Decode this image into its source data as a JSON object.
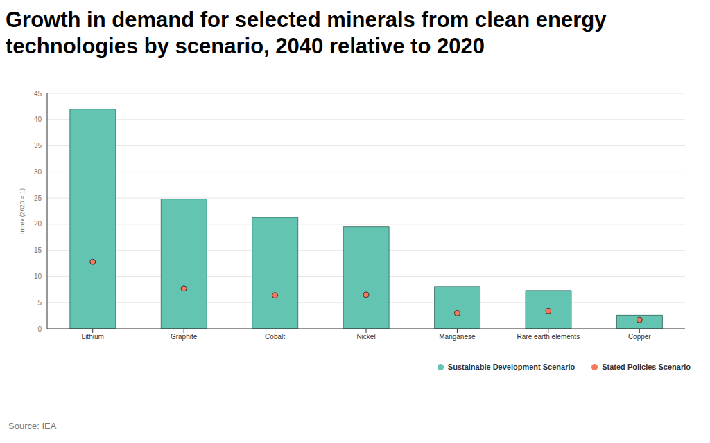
{
  "chart_data": {
    "type": "bar",
    "title": "Growth in demand for selected minerals from clean energy technologies by scenario, 2040 relative to 2020",
    "y_label": "Index (2020 = 1)",
    "source": "Source: IEA",
    "categories": [
      "Lithium",
      "Graphite",
      "Cobalt",
      "Nickel",
      "Manganese",
      "Rare earth elements",
      "Copper"
    ],
    "series": [
      {
        "name": "Sustainable Development Scenario",
        "type": "bar",
        "color": "#62c4b1",
        "values": [
          42,
          24.8,
          21.3,
          19.5,
          8.1,
          7.3,
          2.6
        ]
      },
      {
        "name": "Stated Policies Scenario",
        "type": "scatter",
        "marker": "circle",
        "color": "#f47a5a",
        "values": [
          12.8,
          7.7,
          6.4,
          6.5,
          3.0,
          3.4,
          1.7
        ]
      }
    ],
    "ylim": [
      0,
      45
    ],
    "yticks": [
      0,
      5,
      10,
      15,
      20,
      25,
      30,
      35,
      40,
      45
    ],
    "grid": true,
    "legend": "lower right"
  }
}
